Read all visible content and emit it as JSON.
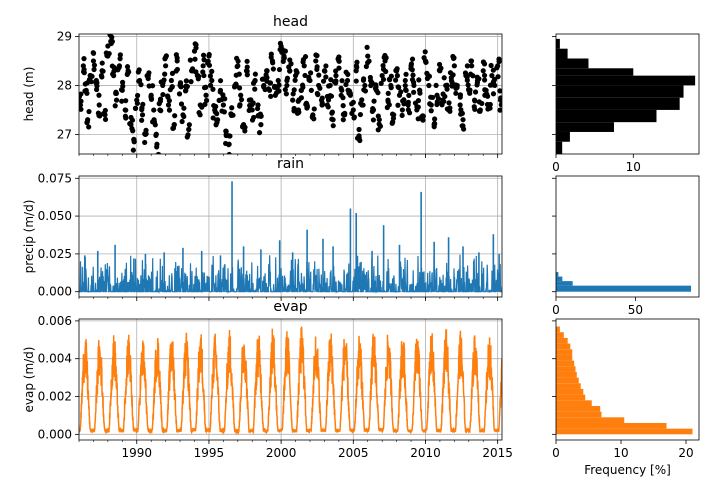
{
  "chart_data": [
    {
      "id": "head",
      "type": "scatter",
      "title": "head",
      "xlabel": "",
      "ylabel": "head (m)",
      "xlim": [
        1986,
        2015.3
      ],
      "ylim": [
        26.6,
        29.05
      ],
      "yticks": [
        27,
        28,
        29
      ],
      "ytick_labels": [
        "27",
        "28",
        "29"
      ],
      "xticks": [
        1990,
        1995,
        2000,
        2005,
        2010,
        2015
      ],
      "xtick_labels": [],
      "grid": true,
      "color": "#000000",
      "series": [
        {
          "x": [
            1986.1,
            1986.3,
            1986.5,
            1986.6,
            1986.8,
            1987.0,
            1987.2,
            1987.4,
            1987.6,
            1987.8,
            1988.0,
            1988.2,
            1988.4,
            1988.6,
            1988.8,
            1989.0,
            1989.2,
            1989.4,
            1989.6,
            1989.8,
            1990.0,
            1990.2,
            1990.4,
            1990.6,
            1990.8,
            1991.0,
            1991.2,
            1991.4,
            1991.6,
            1991.8,
            1992.0,
            1992.2,
            1992.4,
            1992.6,
            1992.8,
            1993.0,
            1993.2,
            1993.4,
            1993.6,
            1993.8,
            1994.0,
            1994.2,
            1994.4,
            1994.6,
            1994.8,
            1995.0,
            1995.2,
            1995.4,
            1995.6,
            1995.8,
            1996.0,
            1996.2,
            1996.4,
            1996.6,
            1996.8,
            1997.0,
            1997.2,
            1997.4,
            1997.6,
            1997.8,
            1998.0,
            1998.2,
            1998.4,
            1998.6,
            1998.8,
            1999.0,
            1999.2,
            1999.4,
            1999.6,
            1999.8,
            2000.0,
            2000.2,
            2000.4,
            2000.6,
            2000.8,
            2001.0,
            2001.2,
            2001.4,
            2001.6,
            2001.8,
            2002.0,
            2002.2,
            2002.4,
            2002.6,
            2002.8,
            2003.0,
            2003.2,
            2003.4,
            2003.6,
            2003.8,
            2004.0,
            2004.2,
            2004.4,
            2004.6,
            2004.8,
            2005.0,
            2005.2,
            2005.4,
            2005.6,
            2005.8,
            2006.0,
            2006.2,
            2006.4,
            2006.6,
            2006.8,
            2007.0,
            2007.2,
            2007.4,
            2007.6,
            2007.8,
            2008.0,
            2008.2,
            2008.4,
            2008.6,
            2008.8,
            2009.0,
            2009.2,
            2009.4,
            2009.6,
            2009.8,
            2010.0,
            2010.2,
            2010.4,
            2010.6,
            2010.8,
            2011.0,
            2011.2,
            2011.4,
            2011.6,
            2011.8,
            2012.0,
            2012.2,
            2012.4,
            2012.6,
            2012.8,
            2013.0,
            2013.2,
            2013.4,
            2013.6,
            2013.8,
            2014.0,
            2014.2,
            2014.4,
            2014.6,
            2014.8,
            2015.0,
            2015.2
          ],
          "y": [
            27.6,
            28.4,
            27.9,
            27.3,
            28.2,
            28.5,
            28.1,
            27.6,
            28.3,
            27.4,
            28.6,
            28.9,
            28.2,
            27.7,
            28.4,
            27.9,
            27.5,
            28.3,
            27.2,
            26.9,
            27.7,
            28.1,
            27.4,
            27.0,
            28.2,
            27.8,
            27.3,
            26.8,
            27.5,
            28.0,
            28.4,
            27.6,
            28.1,
            27.2,
            28.5,
            28.0,
            27.4,
            27.9,
            27.1,
            28.3,
            28.7,
            28.2,
            27.6,
            28.4,
            27.8,
            28.6,
            28.1,
            27.5,
            27.3,
            27.9,
            27.6,
            27.0,
            26.8,
            27.4,
            28.0,
            28.4,
            27.8,
            27.2,
            28.3,
            27.7,
            27.5,
            28.1,
            27.6,
            27.2,
            28.0,
            28.3,
            27.9,
            28.5,
            27.8,
            28.1,
            28.8,
            28.6,
            28.0,
            28.3,
            27.7,
            28.2,
            27.5,
            27.9,
            28.4,
            27.6,
            28.1,
            27.4,
            28.5,
            28.0,
            27.7,
            28.3,
            27.6,
            28.0,
            27.3,
            28.2,
            28.5,
            27.9,
            27.4,
            28.1,
            27.8,
            27.5,
            28.3,
            27.1,
            27.6,
            28.0,
            28.6,
            28.1,
            27.5,
            27.9,
            27.3,
            28.2,
            28.5,
            27.7,
            28.0,
            27.4,
            28.3,
            27.8,
            27.5,
            28.1,
            27.6,
            28.4,
            28.0,
            27.5,
            27.9,
            27.3,
            28.5,
            28.2,
            27.6,
            27.2,
            27.8,
            28.3,
            27.7,
            28.0,
            27.5,
            28.1,
            28.4,
            28.0,
            27.6,
            27.3,
            28.2,
            27.9,
            28.4,
            27.7,
            28.1,
            27.5,
            28.3,
            27.9,
            27.6,
            28.2,
            28.0,
            28.4,
            27.7
          ]
        }
      ]
    },
    {
      "id": "head-hist",
      "type": "bar",
      "orientation": "horizontal",
      "title": "",
      "xlabel": "",
      "ylabel": "",
      "xlim": [
        0,
        18.5
      ],
      "ylim": [
        26.6,
        29.05
      ],
      "xticks": [
        0,
        10
      ],
      "xtick_labels": [
        "0",
        "10"
      ],
      "grid": false,
      "color": "#000000",
      "bin_edges": [
        26.6,
        26.85,
        27.05,
        27.25,
        27.5,
        27.75,
        28.0,
        28.2,
        28.35,
        28.55,
        28.75,
        28.95
      ],
      "values": [
        0.8,
        1.8,
        7.5,
        13.0,
        16.0,
        16.5,
        18.0,
        10.0,
        4.2,
        1.5,
        0.5
      ]
    },
    {
      "id": "rain",
      "type": "line",
      "title": "rain",
      "xlabel": "",
      "ylabel": "precip (m/d)",
      "xlim": [
        1986,
        2015.3
      ],
      "ylim": [
        -0.0035,
        0.0765
      ],
      "yticks": [
        0.0,
        0.025,
        0.05,
        0.075
      ],
      "ytick_labels": [
        "0.000",
        "0.025",
        "0.050",
        "0.075"
      ],
      "xticks": [
        1990,
        1995,
        2000,
        2005,
        2010,
        2015
      ],
      "xtick_labels": [],
      "grid": true,
      "color": "#1f77b4",
      "peaks": [
        {
          "x": 1986.4,
          "y": 0.024
        },
        {
          "x": 1987.3,
          "y": 0.027
        },
        {
          "x": 1988.5,
          "y": 0.031
        },
        {
          "x": 1989.8,
          "y": 0.022
        },
        {
          "x": 1990.6,
          "y": 0.025
        },
        {
          "x": 1991.9,
          "y": 0.026
        },
        {
          "x": 1993.2,
          "y": 0.029
        },
        {
          "x": 1994.5,
          "y": 0.027
        },
        {
          "x": 1995.8,
          "y": 0.024
        },
        {
          "x": 1996.6,
          "y": 0.073
        },
        {
          "x": 1997.4,
          "y": 0.03
        },
        {
          "x": 1998.6,
          "y": 0.028
        },
        {
          "x": 1999.9,
          "y": 0.034
        },
        {
          "x": 2000.8,
          "y": 0.026
        },
        {
          "x": 2001.8,
          "y": 0.041
        },
        {
          "x": 2002.9,
          "y": 0.035
        },
        {
          "x": 2003.6,
          "y": 0.03
        },
        {
          "x": 2004.8,
          "y": 0.055
        },
        {
          "x": 2005.2,
          "y": 0.052
        },
        {
          "x": 2006.3,
          "y": 0.027
        },
        {
          "x": 2007.1,
          "y": 0.044
        },
        {
          "x": 2008.2,
          "y": 0.031
        },
        {
          "x": 2009.7,
          "y": 0.066
        },
        {
          "x": 2010.6,
          "y": 0.033
        },
        {
          "x": 2011.6,
          "y": 0.036
        },
        {
          "x": 2012.6,
          "y": 0.03
        },
        {
          "x": 2013.7,
          "y": 0.026
        },
        {
          "x": 2014.7,
          "y": 0.038
        },
        {
          "x": 2015.1,
          "y": 0.025
        }
      ],
      "typical_max": 0.015
    },
    {
      "id": "rain-hist",
      "type": "bar",
      "orientation": "horizontal",
      "title": "",
      "xlabel": "",
      "ylabel": "",
      "xlim": [
        0,
        90
      ],
      "ylim": [
        -0.0035,
        0.0765
      ],
      "xticks": [
        0,
        50
      ],
      "xtick_labels": [
        "0",
        "50"
      ],
      "grid": false,
      "color": "#1f77b4",
      "bin_edges": [
        0.0,
        0.004,
        0.007,
        0.01,
        0.013
      ],
      "values": [
        85.0,
        10.5,
        4.0,
        1.5
      ]
    },
    {
      "id": "evap",
      "type": "line",
      "title": "evap",
      "xlabel": "",
      "ylabel": "evap (m/d)",
      "xlim": [
        1986,
        2015.3
      ],
      "ylim": [
        -0.0003,
        0.0061
      ],
      "yticks": [
        0.0,
        0.002,
        0.004,
        0.006
      ],
      "ytick_labels": [
        "0.000",
        "0.002",
        "0.004",
        "0.006"
      ],
      "xticks": [
        1990,
        1995,
        2000,
        2005,
        2010,
        2015
      ],
      "xtick_labels": [
        "1990",
        "1995",
        "2000",
        "2005",
        "2010",
        "2015"
      ],
      "grid": true,
      "color": "#ff7f0e",
      "annual_peaks": [
        5.3,
        5.2,
        5.4,
        5.5,
        5.1,
        5.5,
        5.4,
        5.4,
        5.5,
        5.4,
        5.6,
        5.6,
        5.5,
        5.7,
        5.6,
        5.8,
        5.5,
        5.6,
        5.5,
        5.4,
        5.6,
        5.5,
        5.4,
        5.5,
        5.5,
        5.6,
        5.5,
        5.5,
        5.3,
        5.4
      ],
      "peaks_unit_scale": 0.001
    },
    {
      "id": "evap-hist",
      "type": "bar",
      "orientation": "horizontal",
      "title": "",
      "xlabel": "Frequency [%]",
      "ylabel": "",
      "xlim": [
        0,
        22
      ],
      "ylim": [
        -0.0003,
        0.0061
      ],
      "xticks": [
        0,
        10,
        20
      ],
      "xtick_labels": [
        "0",
        "10",
        "20"
      ],
      "grid": false,
      "color": "#ff7f0e",
      "bin_edges": [
        0.0,
        0.0003,
        0.0006,
        0.0009,
        0.0012,
        0.0015,
        0.0018,
        0.0021,
        0.0024,
        0.0027,
        0.003,
        0.0033,
        0.0036,
        0.0039,
        0.0042,
        0.0045,
        0.0048,
        0.0051,
        0.0054,
        0.0057
      ],
      "values": [
        21.0,
        17.0,
        10.5,
        7.0,
        6.8,
        5.5,
        4.5,
        4.2,
        3.8,
        3.5,
        3.2,
        3.0,
        2.8,
        2.5,
        2.5,
        2.2,
        1.8,
        1.2,
        0.6
      ]
    }
  ]
}
